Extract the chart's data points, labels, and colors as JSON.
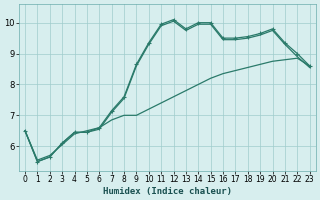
{
  "xlabel": "Humidex (Indice chaleur)",
  "background_color": "#d7eeee",
  "grid_color": "#a0cccc",
  "line_color": "#2a7a6a",
  "xlim": [
    -0.5,
    23.5
  ],
  "ylim": [
    5.2,
    10.6
  ],
  "xticks": [
    0,
    1,
    2,
    3,
    4,
    5,
    6,
    7,
    8,
    9,
    10,
    11,
    12,
    13,
    14,
    15,
    16,
    17,
    18,
    19,
    20,
    21,
    22,
    23
  ],
  "yticks": [
    6,
    7,
    8,
    9,
    10
  ],
  "line1_x": [
    0,
    1,
    2,
    3,
    4,
    5,
    6,
    7,
    8,
    9,
    10,
    11,
    12,
    13,
    14,
    15,
    16,
    17,
    18,
    19,
    20,
    21,
    22,
    23
  ],
  "line1_y": [
    6.5,
    5.5,
    5.65,
    6.1,
    6.45,
    6.45,
    6.6,
    7.15,
    7.6,
    8.65,
    9.35,
    9.95,
    10.1,
    9.8,
    10.0,
    10.0,
    9.5,
    9.5,
    9.55,
    9.65,
    9.8,
    9.35,
    9.0,
    8.6
  ],
  "line2_x": [
    0,
    1,
    2,
    3,
    4,
    5,
    6,
    7,
    8,
    9,
    10,
    11,
    12,
    13,
    14,
    15,
    16,
    17,
    18,
    19,
    20,
    21,
    22,
    23
  ],
  "line2_y": [
    6.5,
    5.5,
    5.65,
    6.1,
    6.45,
    6.45,
    6.55,
    7.1,
    7.55,
    8.6,
    9.3,
    9.9,
    10.05,
    9.75,
    9.95,
    9.95,
    9.45,
    9.45,
    9.5,
    9.6,
    9.75,
    9.3,
    8.9,
    8.55
  ],
  "line3_x": [
    0,
    1,
    2,
    3,
    4,
    5,
    6,
    7,
    8,
    9,
    10,
    11,
    12,
    13,
    14,
    15,
    16,
    17,
    18,
    19,
    20,
    21,
    22,
    23
  ],
  "line3_y": [
    6.5,
    5.55,
    5.7,
    6.05,
    6.4,
    6.5,
    6.6,
    6.85,
    7.0,
    7.0,
    7.2,
    7.4,
    7.6,
    7.8,
    8.0,
    8.2,
    8.35,
    8.45,
    8.55,
    8.65,
    8.75,
    8.8,
    8.85,
    8.6
  ],
  "marker_size": 2.5,
  "line_width": 0.9
}
